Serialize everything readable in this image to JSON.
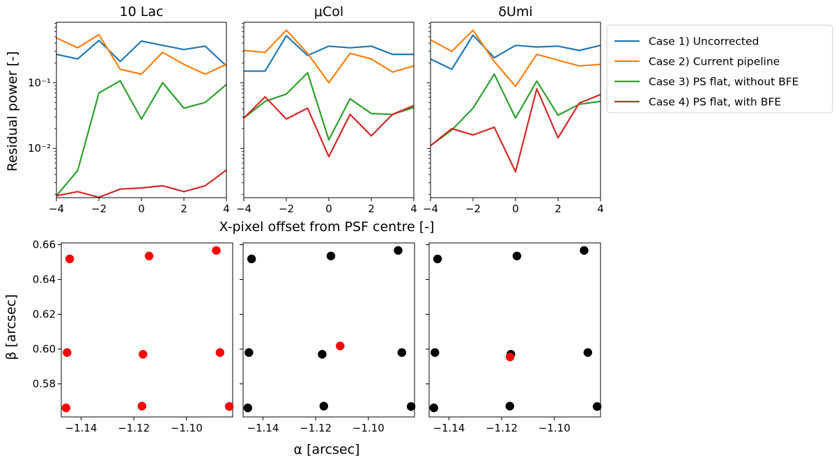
{
  "chart_data": [
    {
      "type": "line",
      "row": "top",
      "yscale": "log",
      "ylabel": "Residual power [-]",
      "xlabel": "X-pixel offset from PSF centre [-]",
      "xlim": [
        -4,
        4
      ],
      "ylim_log10": [
        -2.75,
        -0.08
      ],
      "x_ticks": [
        "−4",
        "−2",
        "0",
        "2",
        "4"
      ],
      "y_ticks": [
        "10⁻¹",
        "10⁻²"
      ],
      "x": [
        -4,
        -3,
        -2,
        -1,
        0,
        1,
        2,
        3,
        4
      ],
      "colors": [
        "#1f77b4",
        "#ff7f0e",
        "#2ca02c",
        "#d62728"
      ],
      "legend": [
        "Case 1) Uncorrected",
        "Case 2) Current pipeline",
        "Case 3) PS flat, without BFE",
        "Case 4) PS flat, with BFE"
      ],
      "panels": [
        {
          "title": "10 Lac",
          "series": [
            [
              0.27,
              0.23,
              0.44,
              0.21,
              0.43,
              0.37,
              0.32,
              0.36,
              0.18
            ],
            [
              0.48,
              0.34,
              0.54,
              0.16,
              0.135,
              0.29,
              0.19,
              0.135,
              0.19
            ],
            [
              0.0019,
              0.0046,
              0.07,
              0.107,
              0.028,
              0.1,
              0.041,
              0.05,
              0.094
            ],
            [
              0.0019,
              0.0022,
              0.0018,
              0.0024,
              0.0025,
              0.0027,
              0.0022,
              0.0027,
              0.0047
            ]
          ]
        },
        {
          "title": "μCol",
          "series": [
            [
              0.15,
              0.15,
              0.52,
              0.26,
              0.36,
              0.34,
              0.36,
              0.27,
              0.27
            ],
            [
              0.31,
              0.29,
              0.63,
              0.28,
              0.1,
              0.28,
              0.23,
              0.145,
              0.18
            ],
            [
              0.029,
              0.052,
              0.067,
              0.142,
              0.0135,
              0.057,
              0.034,
              0.033,
              0.042
            ],
            [
              0.029,
              0.061,
              0.028,
              0.041,
              0.0075,
              0.033,
              0.0155,
              0.033,
              0.045
            ]
          ]
        },
        {
          "title": "δUmi",
          "series": [
            [
              0.23,
              0.16,
              0.53,
              0.24,
              0.37,
              0.35,
              0.36,
              0.31,
              0.37
            ],
            [
              0.45,
              0.3,
              0.63,
              0.21,
              0.088,
              0.27,
              0.22,
              0.18,
              0.19
            ],
            [
              0.011,
              0.019,
              0.041,
              0.135,
              0.029,
              0.106,
              0.032,
              0.047,
              0.052
            ],
            [
              0.011,
              0.02,
              0.016,
              0.021,
              0.0044,
              0.081,
              0.0145,
              0.049,
              0.066
            ]
          ]
        }
      ]
    },
    {
      "type": "scatter",
      "row": "bottom",
      "xlabel": "α [arcsec]",
      "ylabel": "β [arcsec]",
      "xlim": [
        -1.1475,
        -1.0825
      ],
      "ylim": [
        0.561,
        0.661
      ],
      "x_ticks": [
        -1.14,
        -1.12,
        -1.1
      ],
      "x_tick_labels": [
        "−1.14",
        "−1.12",
        "−1.10"
      ],
      "y_ticks": [
        0.58,
        0.6,
        0.62,
        0.64,
        0.66
      ],
      "y_tick_labels": [
        "0.58",
        "0.60",
        "0.62",
        "0.64",
        "0.66"
      ],
      "grid": false,
      "panels": [
        {
          "title": "10 Lac",
          "points": [
            {
              "x": -1.1443,
              "y": 0.6518,
              "color": "#ff0000"
            },
            {
              "x": -1.1142,
              "y": 0.6535,
              "color": "#ff0000"
            },
            {
              "x": -1.0887,
              "y": 0.6567,
              "color": "#ff0000"
            },
            {
              "x": -1.1453,
              "y": 0.598,
              "color": "#ff0000"
            },
            {
              "x": -1.1165,
              "y": 0.597,
              "color": "#ff0000"
            },
            {
              "x": -1.0873,
              "y": 0.598,
              "color": "#ff0000"
            },
            {
              "x": -1.1457,
              "y": 0.5662,
              "color": "#ff0000"
            },
            {
              "x": -1.1169,
              "y": 0.5672,
              "color": "#ff0000"
            },
            {
              "x": -1.0838,
              "y": 0.567,
              "color": "#ff0000"
            }
          ]
        },
        {
          "title": "μCol",
          "points": [
            {
              "x": -1.1443,
              "y": 0.6518,
              "color": "#000000"
            },
            {
              "x": -1.1142,
              "y": 0.6535,
              "color": "#000000"
            },
            {
              "x": -1.0887,
              "y": 0.6567,
              "color": "#000000"
            },
            {
              "x": -1.1453,
              "y": 0.598,
              "color": "#000000"
            },
            {
              "x": -1.1175,
              "y": 0.597,
              "color": "#000000"
            },
            {
              "x": -1.0873,
              "y": 0.598,
              "color": "#000000"
            },
            {
              "x": -1.1457,
              "y": 0.5662,
              "color": "#000000"
            },
            {
              "x": -1.1169,
              "y": 0.5672,
              "color": "#000000"
            },
            {
              "x": -1.0838,
              "y": 0.567,
              "color": "#000000"
            },
            {
              "x": -1.1107,
              "y": 0.6018,
              "color": "#ff0000"
            }
          ]
        },
        {
          "title": "δUmi",
          "points": [
            {
              "x": -1.1443,
              "y": 0.6518,
              "color": "#000000"
            },
            {
              "x": -1.1142,
              "y": 0.6535,
              "color": "#000000"
            },
            {
              "x": -1.0887,
              "y": 0.6567,
              "color": "#000000"
            },
            {
              "x": -1.1453,
              "y": 0.598,
              "color": "#000000"
            },
            {
              "x": -1.1165,
              "y": 0.597,
              "color": "#000000"
            },
            {
              "x": -1.0873,
              "y": 0.598,
              "color": "#000000"
            },
            {
              "x": -1.1457,
              "y": 0.5662,
              "color": "#000000"
            },
            {
              "x": -1.1169,
              "y": 0.5672,
              "color": "#000000"
            },
            {
              "x": -1.0838,
              "y": 0.567,
              "color": "#000000"
            },
            {
              "x": -1.1168,
              "y": 0.5955,
              "color": "#ff0000"
            }
          ]
        }
      ]
    }
  ]
}
